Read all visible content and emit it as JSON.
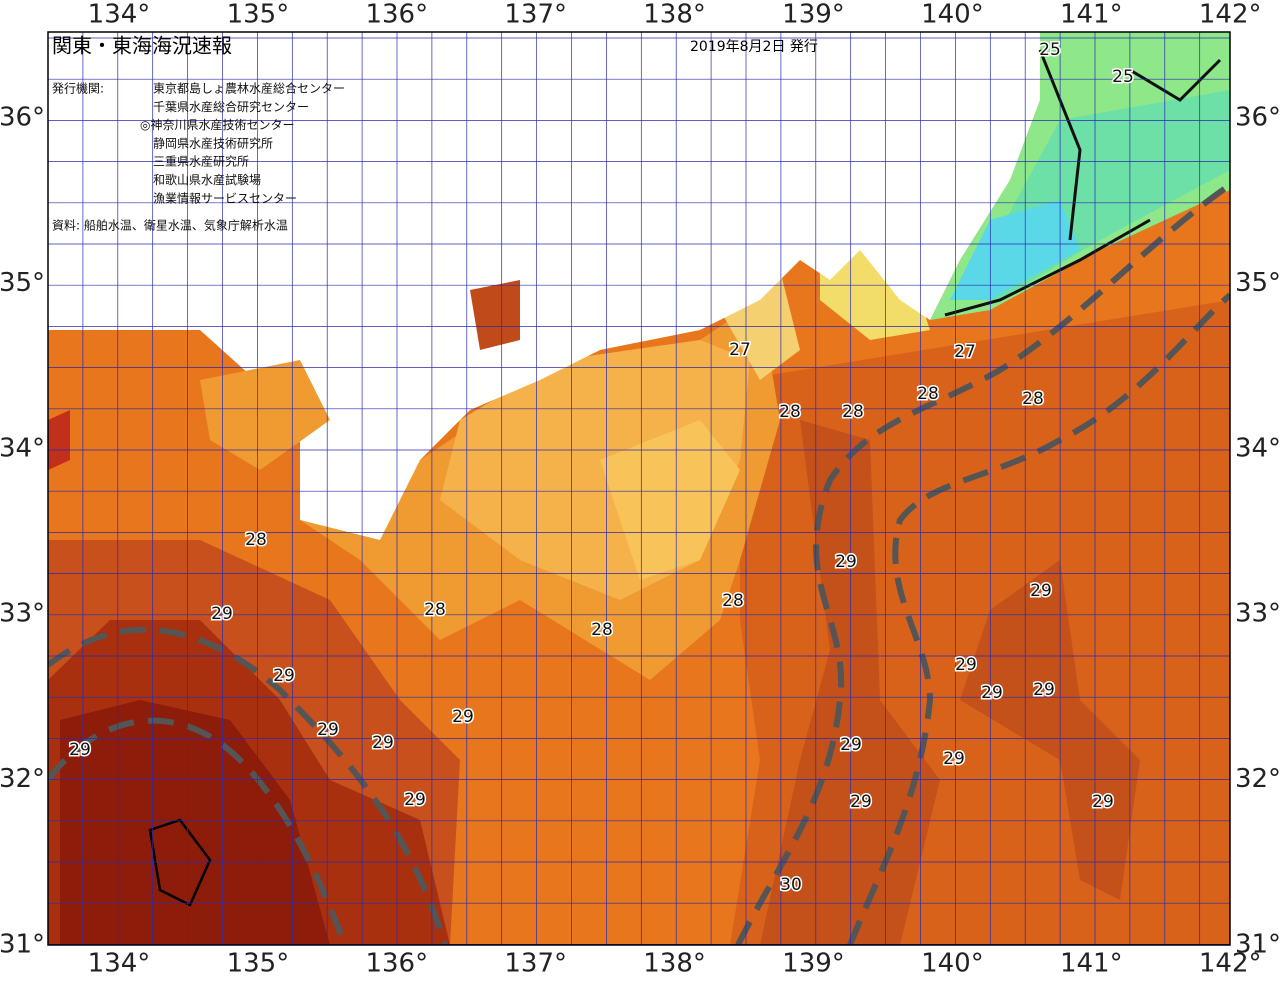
{
  "header": {
    "title": "関東・東海海況速報",
    "date": "2019年8月2日 発行",
    "issuer_label": "発行機関:",
    "issuers": [
      "東京都島しょ農林水産総合センター",
      "千葉県水産総合研究センター",
      "◎神奈川県水産技術センター",
      "静岡県水産技術研究所",
      "三重県水産研究所",
      "和歌山県水産試験場",
      "漁業情報サービスセンター"
    ],
    "source": "資料: 船舶水温、衛星水温、気象庁解析水温"
  },
  "map": {
    "lon_labels": [
      "134°",
      "135°",
      "136°",
      "137°",
      "138°",
      "139°",
      "140°",
      "141°",
      "142°"
    ],
    "lat_labels": [
      "36°",
      "35°",
      "34°",
      "33°",
      "32°",
      "31°"
    ],
    "contour_labels": [
      "25",
      "25",
      "27",
      "27",
      "28",
      "28",
      "28",
      "28",
      "28",
      "28",
      "28",
      "28",
      "29",
      "29",
      "29",
      "29",
      "29",
      "29",
      "29",
      "29",
      "29",
      "29",
      "29",
      "29",
      "29",
      "29",
      "29",
      "29",
      "30"
    ]
  }
}
